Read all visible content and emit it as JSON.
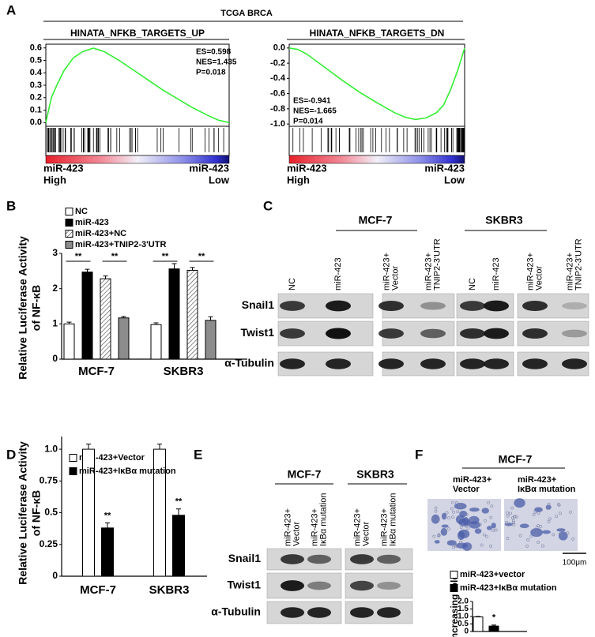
{
  "panel_letters": [
    "A",
    "B",
    "C",
    "D",
    "E",
    "F"
  ],
  "header": "TCGA BRCA",
  "chart_data": [
    {
      "type": "line",
      "title": "HINATA_NFKB_TARGETS_UP",
      "x": [
        0,
        3,
        6,
        10,
        15,
        20,
        26,
        32,
        40,
        48,
        56,
        64,
        72,
        80,
        88,
        94,
        100
      ],
      "series": [
        {
          "color": "#33ee33",
          "values": [
            0,
            0.2,
            0.3,
            0.42,
            0.52,
            0.57,
            0.598,
            0.57,
            0.5,
            0.42,
            0.34,
            0.26,
            0.19,
            0.12,
            0.06,
            0.02,
            0
          ]
        }
      ],
      "xlim": [
        0,
        100
      ],
      "ylim": [
        -0.03,
        0.63
      ],
      "yticks": [
        {
          "value": 0,
          "label": "0.0"
        },
        0.1,
        0.2,
        0.3,
        0.4,
        0.5,
        0.6
      ],
      "annotations": [
        "ES=0.598",
        "NES=1.435",
        "P=0.018"
      ],
      "x_start_label": [
        "miR-423",
        "High"
      ],
      "x_end_label": [
        "miR-423",
        "Low"
      ]
    },
    {
      "type": "line",
      "title": "HINATA_NFKB_TARGETS_DN",
      "x": [
        0,
        5,
        10,
        20,
        30,
        40,
        50,
        60,
        66,
        72,
        78,
        84,
        88,
        92,
        96,
        100
      ],
      "series": [
        {
          "color": "#33ee33",
          "values": [
            0,
            -0.02,
            -0.08,
            -0.25,
            -0.42,
            -0.58,
            -0.72,
            -0.85,
            -0.91,
            -0.941,
            -0.92,
            -0.85,
            -0.75,
            -0.55,
            -0.3,
            0
          ]
        }
      ],
      "xlim": [
        0,
        100
      ],
      "ylim": [
        -1.03,
        0.05
      ],
      "yticks": [
        {
          "value": 0,
          "label": "0.0"
        },
        -0.2,
        -0.4,
        -0.6,
        -0.8,
        {
          "value": -1,
          "label": "-1.0"
        }
      ],
      "annotations": [
        "ES=-0.941",
        "NES=-1.665",
        "P=0.014"
      ],
      "x_start_label": [
        "miR-423",
        "High"
      ],
      "x_end_label": [
        "miR-423",
        "Low"
      ]
    },
    {
      "type": "bar",
      "ylabel": [
        "Relative Luciferase Activity",
        "of NF-κB"
      ],
      "categories": [
        "MCF-7",
        "SKBR3"
      ],
      "series": [
        {
          "name": "NC",
          "color": "#ffffff",
          "values": [
            1.0,
            0.98
          ],
          "errors": [
            0.05,
            0.05
          ]
        },
        {
          "name": "miR-423",
          "color": "#000000",
          "values": [
            2.47,
            2.56
          ],
          "errors": [
            0.08,
            0.15
          ]
        },
        {
          "name": "miR-423+NC",
          "color": "#ffffff",
          "pattern": "hatch",
          "values": [
            2.28,
            2.52
          ],
          "errors": [
            0.08,
            0.08
          ]
        },
        {
          "name": "miR-423+TNIP2-3'UTR",
          "color": "#8c8c8c",
          "values": [
            1.17,
            1.1
          ],
          "errors": [
            0.04,
            0.1
          ]
        }
      ],
      "ylim": [
        0,
        3
      ],
      "yticks": [
        0,
        1,
        2,
        3
      ],
      "significance": [
        "**",
        "**",
        "**",
        "**"
      ]
    },
    {
      "type": "bar",
      "ylabel": [
        "Relative Luciferase Activity",
        "of NF-κB"
      ],
      "categories": [
        "MCF-7",
        "SKBR3"
      ],
      "series": [
        {
          "name": "miR-423+Vector",
          "color": "#ffffff",
          "values": [
            1.0,
            1.0
          ],
          "errors": [
            0.04,
            0.04
          ]
        },
        {
          "name": "miR-423+IκBα mutation",
          "color": "#000000",
          "values": [
            0.38,
            0.48
          ],
          "errors": [
            0.04,
            0.05
          ]
        }
      ],
      "ylim": [
        0,
        1.1
      ],
      "yticks": [
        0,
        0.25,
        0.5,
        0.75,
        {
          "value": 1,
          "label": "1.0"
        }
      ],
      "significance": [
        "**",
        "**"
      ]
    },
    {
      "type": "bar",
      "ylabel": [
        "Increasing fold"
      ],
      "categories": [
        null
      ],
      "series": [
        {
          "name": "miR-423+vector",
          "color": "#ffffff",
          "values": [
            0.97
          ],
          "errors": [
            0.03
          ]
        },
        {
          "name": "miR-423+IκBα mutation",
          "color": "#000000",
          "values": [
            0.36
          ],
          "errors": [
            0.07
          ]
        }
      ],
      "ylim": [
        0,
        2
      ],
      "yticks": [
        0,
        0.5,
        {
          "value": 1,
          "label": "1.0"
        },
        1.5,
        {
          "value": 2,
          "label": "2.0"
        }
      ],
      "significance": [
        "*"
      ]
    }
  ],
  "blots": [
    {
      "groups": [
        "MCF-7",
        "SKBR3"
      ],
      "lanes": [
        [
          "NC"
        ],
        [
          "miR-423"
        ],
        [
          "miR-423+",
          "Vector"
        ],
        [
          "miR-423+",
          "TNIP2-3'UTR"
        ],
        [
          "NC"
        ],
        [
          "miR-423"
        ],
        [
          "miR-423+",
          "Vector"
        ],
        [
          "miR-423+",
          "TNIP2-3'UTR"
        ]
      ],
      "rows": [
        "Snail1",
        "Twist1",
        "α-Tubulin"
      ]
    },
    {
      "groups": [
        "MCF-7",
        "SKBR3"
      ],
      "lanes": [
        [
          "miR-423+",
          "Vector"
        ],
        [
          "miR-423+",
          "IκBα mutation"
        ],
        [
          "miR-423+",
          "Vector"
        ],
        [
          "miR-423+",
          "IκBα mutation"
        ]
      ],
      "rows": [
        "Snail1",
        "Twist1",
        "α-Tubulin"
      ]
    }
  ],
  "micrograph": {
    "title": "MCF-7",
    "labels": [
      [
        "miR-423+",
        "Vector"
      ],
      [
        "miR-423+",
        "IκBα mutation"
      ]
    ],
    "scale": "100μm"
  }
}
